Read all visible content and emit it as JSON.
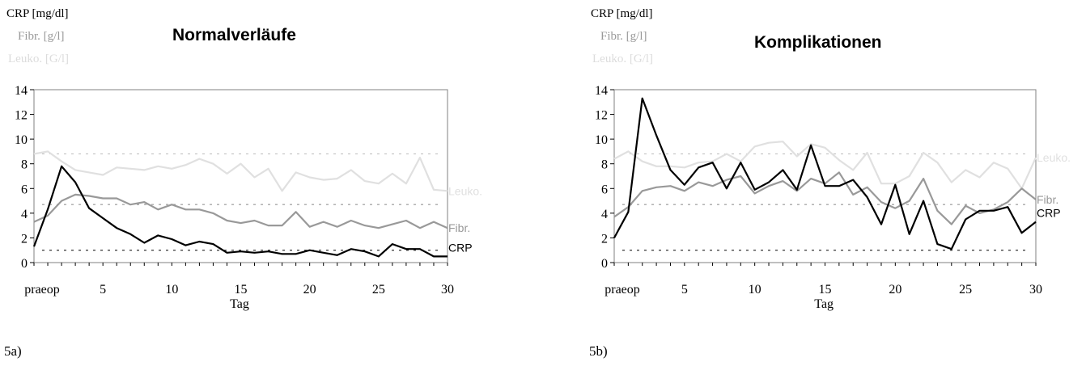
{
  "legend_labels": {
    "crp_unit": "CRP [mg/dl]",
    "fibr_unit": "Fibr. [g/l]",
    "leuko_unit": "Leuko. [G/l]"
  },
  "colors": {
    "crp": "#000000",
    "fibr": "#999999",
    "leuko": "#e0e0e0"
  },
  "chart_data": [
    {
      "type": "line",
      "title": "Normalverläufe",
      "caption": "5a)",
      "xlabel": "Tag",
      "x_first_label": "praeop",
      "x_ticks": [
        5,
        10,
        15,
        20,
        25,
        30
      ],
      "ylim": [
        0,
        14
      ],
      "y_ticks": [
        0,
        2,
        4,
        6,
        8,
        10,
        12,
        14
      ],
      "grid": false,
      "reference_lines": [
        1,
        4.7,
        8.8
      ],
      "x": [
        0,
        1,
        2,
        3,
        4,
        5,
        6,
        7,
        8,
        9,
        10,
        11,
        12,
        13,
        14,
        15,
        16,
        17,
        18,
        19,
        20,
        21,
        22,
        23,
        24,
        25,
        26,
        27,
        28,
        29,
        30
      ],
      "series": [
        {
          "name": "Leuko.",
          "key": "leuko",
          "values": [
            8.8,
            9.0,
            8.2,
            7.5,
            7.3,
            7.1,
            7.7,
            7.6,
            7.5,
            7.8,
            7.6,
            7.9,
            8.4,
            8.0,
            7.2,
            8.0,
            6.9,
            7.6,
            5.8,
            7.3,
            6.9,
            6.7,
            6.8,
            7.5,
            6.6,
            6.4,
            7.2,
            6.4,
            8.5,
            5.9,
            5.8
          ]
        },
        {
          "name": "Fibr.",
          "key": "fibr",
          "values": [
            3.3,
            3.8,
            5.0,
            5.5,
            5.4,
            5.2,
            5.2,
            4.7,
            4.9,
            4.3,
            4.7,
            4.3,
            4.3,
            4.0,
            3.4,
            3.2,
            3.4,
            3.0,
            3.0,
            4.1,
            2.9,
            3.3,
            2.9,
            3.4,
            3.0,
            2.8,
            3.1,
            3.4,
            2.8,
            3.3,
            2.8
          ]
        },
        {
          "name": "CRP",
          "key": "crp",
          "values": [
            1.3,
            4.3,
            7.8,
            6.5,
            4.4,
            3.6,
            2.8,
            2.3,
            1.6,
            2.2,
            1.9,
            1.4,
            1.7,
            1.5,
            0.8,
            0.9,
            0.8,
            0.9,
            0.7,
            0.7,
            1.0,
            0.8,
            0.6,
            1.1,
            0.9,
            0.5,
            1.5,
            1.1,
            1.1,
            0.5,
            0.5
          ]
        }
      ]
    },
    {
      "type": "line",
      "title": "Komplikationen",
      "caption": "5b)",
      "xlabel": "Tag",
      "x_first_label": "praeop",
      "x_ticks": [
        5,
        10,
        15,
        20,
        25,
        30
      ],
      "ylim": [
        0,
        14
      ],
      "y_ticks": [
        0,
        2,
        4,
        6,
        8,
        10,
        12,
        14
      ],
      "grid": false,
      "reference_lines": [
        1,
        4.7,
        8.8
      ],
      "x": [
        0,
        1,
        2,
        3,
        4,
        5,
        6,
        7,
        8,
        9,
        10,
        11,
        12,
        13,
        14,
        15,
        16,
        17,
        18,
        19,
        20,
        21,
        22,
        23,
        24,
        25,
        26,
        27,
        28,
        29,
        30
      ],
      "series": [
        {
          "name": "Leuko.",
          "key": "leuko",
          "values": [
            8.4,
            9.0,
            8.2,
            7.8,
            7.8,
            7.7,
            8.1,
            8.2,
            8.8,
            8.2,
            9.4,
            9.7,
            9.8,
            8.6,
            9.6,
            9.3,
            8.3,
            7.5,
            8.9,
            6.4,
            6.4,
            7.0,
            8.9,
            8.1,
            6.5,
            7.5,
            6.9,
            8.1,
            7.6,
            6.0,
            8.5
          ]
        },
        {
          "name": "Fibr.",
          "key": "fibr",
          "values": [
            3.7,
            4.5,
            5.8,
            6.1,
            6.2,
            5.8,
            6.5,
            6.2,
            6.7,
            7.0,
            5.6,
            6.2,
            6.6,
            5.8,
            6.8,
            6.4,
            7.3,
            5.5,
            6.1,
            4.9,
            4.4,
            5.0,
            6.8,
            4.2,
            3.1,
            4.6,
            4.0,
            4.3,
            4.9,
            6.0,
            5.1
          ]
        },
        {
          "name": "CRP",
          "key": "crp",
          "values": [
            2.0,
            4.1,
            13.3,
            10.3,
            7.5,
            6.3,
            7.7,
            8.1,
            6.0,
            8.1,
            5.9,
            6.5,
            7.5,
            5.9,
            9.5,
            6.2,
            6.2,
            6.7,
            5.3,
            3.1,
            6.3,
            2.3,
            5.0,
            1.5,
            1.1,
            3.5,
            4.2,
            4.2,
            4.5,
            2.4,
            3.3
          ]
        }
      ]
    }
  ]
}
